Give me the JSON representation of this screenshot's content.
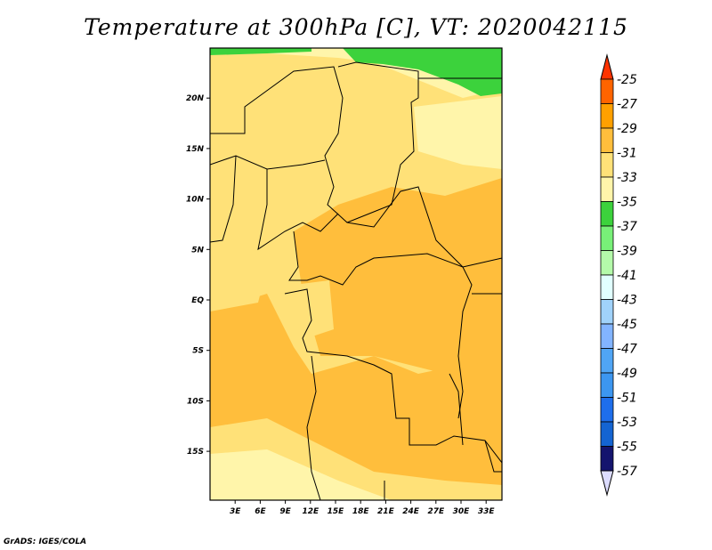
{
  "title": "Temperature at 300hPa [C], VT: 2020042115",
  "footer": "GrADS: IGES/COLA",
  "lat_labels": [
    "20N",
    "15N",
    "10N",
    "5N",
    "EQ",
    "5S",
    "10S",
    "15S"
  ],
  "lat_values": [
    20,
    15,
    10,
    5,
    0,
    -5,
    -10,
    -15
  ],
  "lon_labels": [
    "3E",
    "6E",
    "9E",
    "12E",
    "15E",
    "18E",
    "21E",
    "24E",
    "27E",
    "30E",
    "33E"
  ],
  "lon_values": [
    3,
    6,
    9,
    12,
    15,
    18,
    21,
    24,
    27,
    30,
    33
  ],
  "colorbar": {
    "labels": [
      "-25",
      "-27",
      "-29",
      "-31",
      "-33",
      "-35",
      "-37",
      "-39",
      "-41",
      "-43",
      "-45",
      "-47",
      "-49",
      "-51",
      "-53",
      "-55",
      "-57"
    ],
    "top_arrow_color": "#ff3300",
    "bottom_arrow_color": "#dcdcff",
    "colors": [
      "#ff6400",
      "#ffa000",
      "#ffbe3c",
      "#ffe178",
      "#fff5aa",
      "#3cd23c",
      "#78f078",
      "#b4faaa",
      "#e1ffff",
      "#a0d2fa",
      "#82b4ff",
      "#50a5f5",
      "#3c96f0",
      "#1e6eeb",
      "#1464d2",
      "#14146e"
    ]
  }
}
